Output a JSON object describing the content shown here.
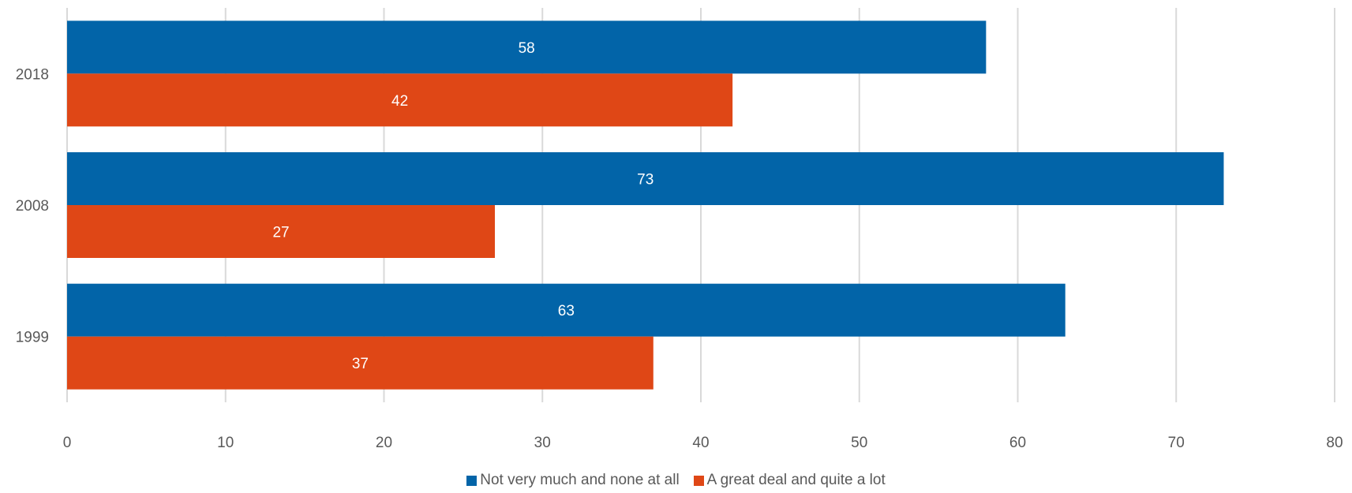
{
  "chart_data": {
    "type": "bar",
    "orientation": "horizontal",
    "categories": [
      "2018",
      "2008",
      "1999"
    ],
    "series": [
      {
        "name": "Not very much and none at all",
        "color": "#0264A8",
        "values": [
          58,
          73,
          63
        ]
      },
      {
        "name": "A great deal and quite a lot",
        "color": "#DF4716",
        "values": [
          42,
          27,
          37
        ]
      }
    ],
    "xlim": [
      0,
      80
    ],
    "xticks": [
      0,
      10,
      20,
      30,
      40,
      50,
      60,
      70,
      80
    ],
    "grid": true,
    "legend_position": "bottom",
    "data_labels": true
  }
}
